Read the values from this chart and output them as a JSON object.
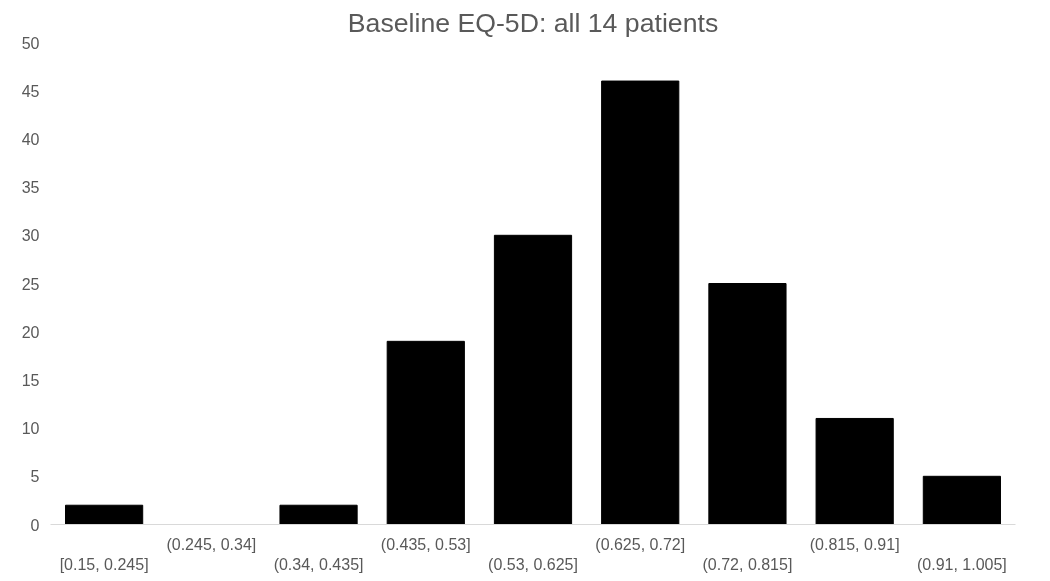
{
  "chart_data": {
    "type": "bar",
    "title": "Baseline EQ-5D: all 14 patients",
    "categories": [
      "[0.15, 0.245]",
      "(0.245, 0.34]",
      "(0.34, 0.435]",
      "(0.435, 0.53]",
      "(0.53, 0.625]",
      "(0.625, 0.72]",
      "(0.72, 0.815]",
      "(0.815, 0.91]",
      "(0.91, 1.005]"
    ],
    "values": [
      2,
      0,
      2,
      19,
      30,
      46,
      25,
      11,
      5
    ],
    "color": "#000000",
    "ylim": [
      0,
      50
    ],
    "yticks": [
      0,
      5,
      10,
      15,
      20,
      25,
      30,
      35,
      40,
      45,
      50
    ],
    "grid": false
  }
}
